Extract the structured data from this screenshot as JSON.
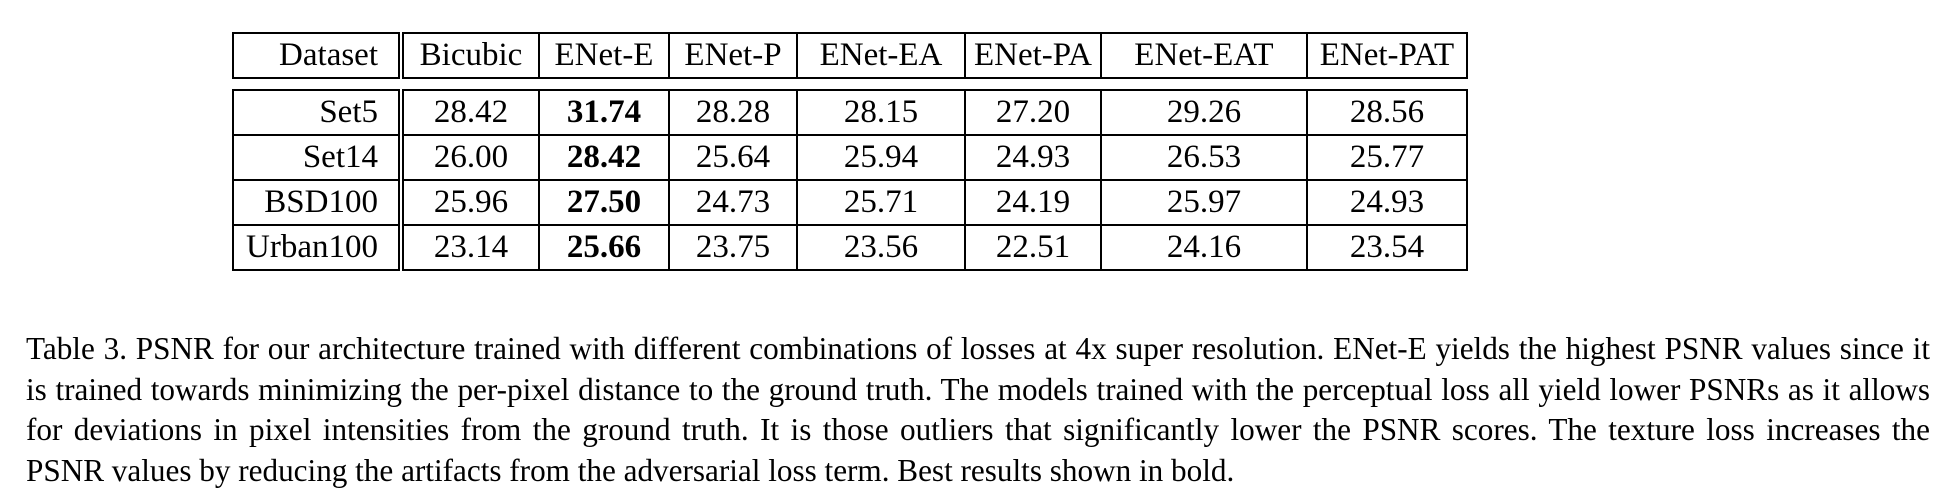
{
  "table": {
    "headers": [
      "Dataset",
      "Bicubic",
      "ENet-E",
      "ENet-P",
      "ENet-EA",
      "ENet-PA",
      "ENet-EAT",
      "ENet-PAT"
    ],
    "rows": [
      {
        "dataset": "Set5",
        "values": [
          "28.42",
          "31.74",
          "28.28",
          "28.15",
          "27.20",
          "29.26",
          "28.56"
        ]
      },
      {
        "dataset": "Set14",
        "values": [
          "26.00",
          "28.42",
          "25.64",
          "25.94",
          "24.93",
          "26.53",
          "25.77"
        ]
      },
      {
        "dataset": "BSD100",
        "values": [
          "25.96",
          "27.50",
          "24.73",
          "25.71",
          "24.19",
          "25.97",
          "24.93"
        ]
      },
      {
        "dataset": "Urban100",
        "values": [
          "23.14",
          "25.66",
          "23.75",
          "23.56",
          "22.51",
          "24.16",
          "23.54"
        ]
      }
    ],
    "bold_column": "ENet-E"
  },
  "caption": "Table 3. PSNR for our architecture trained with different combinations of losses at 4x super resolution. ENet-E yields the highest PSNR values since it is trained towards minimizing the per-pixel distance to the ground truth. The models trained with the perceptual loss all yield lower PSNRs as it allows for deviations in pixel intensities from the ground truth. It is those outliers that significantly lower the PSNR scores. The texture loss increases the PSNR values by reducing the artifacts from the adversarial loss term. Best results shown in bold."
}
